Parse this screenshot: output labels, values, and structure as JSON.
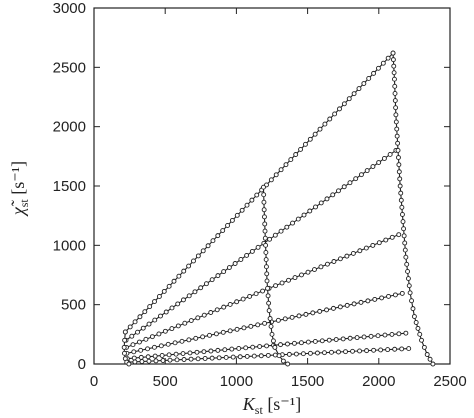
{
  "chart_data": {
    "type": "line",
    "xlabel": {
      "symbol": "K",
      "sub": "st",
      "unit": " [s⁻¹]"
    },
    "ylabel": {
      "symbol": "χ̃",
      "sub": "st",
      "unit": " [s⁻¹]"
    },
    "xlim": [
      0,
      2500
    ],
    "ylim": [
      0,
      3000
    ],
    "xticks": [
      0,
      500,
      1000,
      1500,
      2000,
      2500
    ],
    "yticks": [
      0,
      500,
      1000,
      1500,
      2000,
      2500,
      3000
    ],
    "grid": false,
    "marker": "open-circle",
    "series": [
      {
        "x": [
          220,
          2100
        ],
        "y": [
          270,
          2620
        ]
      },
      {
        "x": [
          225,
          2120
        ],
        "y": [
          200,
          1800
        ]
      },
      {
        "x": [
          228,
          2140
        ],
        "y": [
          140,
          1090
        ]
      },
      {
        "x": [
          231,
          2165
        ],
        "y": [
          90,
          595
        ]
      },
      {
        "x": [
          234,
          2190
        ],
        "y": [
          45,
          260
        ]
      },
      {
        "x": [
          238,
          2210
        ],
        "y": [
          15,
          130
        ]
      },
      {
        "x": [
          1190,
          1195,
          1205,
          1215,
          1230,
          1250,
          1270,
          1300,
          1330,
          1360
        ],
        "y": [
          1490,
          1300,
          1000,
          700,
          450,
          250,
          140,
          70,
          25,
          0
        ]
      },
      {
        "x": [
          2100,
          2110,
          2120,
          2135,
          2150,
          2170,
          2190,
          2220,
          2250,
          2300,
          2340,
          2380
        ],
        "y": [
          2620,
          2400,
          2100,
          1800,
          1500,
          1200,
          900,
          600,
          400,
          200,
          80,
          0
        ]
      },
      {
        "x": [
          220,
          215,
          212,
          214,
          220,
          230,
          245
        ],
        "y": [
          270,
          200,
          140,
          90,
          45,
          15,
          0
        ]
      }
    ]
  }
}
